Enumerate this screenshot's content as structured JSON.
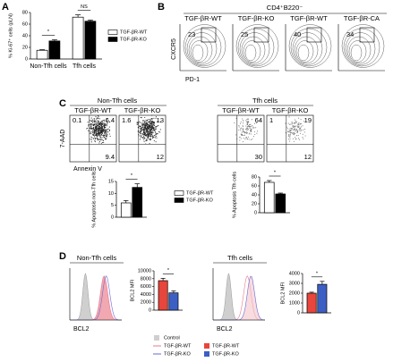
{
  "panel_labels": [
    "A",
    "B",
    "C",
    "D"
  ],
  "flow_b": {
    "header": "CD4⁺B220⁻",
    "y_axis": "CXCR5",
    "x_axis": "PD-1",
    "plots": [
      {
        "title": "TGF-βR-WT",
        "gate": 23
      },
      {
        "title": "TGF-βR-KO",
        "gate": 25
      },
      {
        "title": "TGF-βR-WT",
        "gate": 40
      },
      {
        "title": "TGF-βR-CA",
        "gate": 34
      }
    ]
  },
  "flow_c": {
    "groups": [
      "Non-Tfh cells",
      "Tfh cells"
    ],
    "y_axis": "7-AAD",
    "x_axis": "Annexin V",
    "plots": [
      {
        "title": "TGF-βR-WT",
        "quadrants": {
          "ul": 0.1,
          "ur": 6.4,
          "lr": 9.4
        }
      },
      {
        "title": "TGF-βR-KO",
        "quadrants": {
          "ul": 1.6,
          "ur": 13,
          "lr": 12
        }
      },
      {
        "title": "TGF-βR-WT",
        "quadrants": {
          "ur": 64,
          "lr": 30
        }
      },
      {
        "title": "TGF-βR-KO",
        "quadrants": {
          "ul": 1,
          "ur": 19,
          "lr": 12
        }
      }
    ]
  },
  "hist_d": {
    "groups": [
      "Non-Tfh cells",
      "Tfh cells"
    ],
    "x_axes": [
      "BCL2",
      "BCL2"
    ],
    "legend": [
      {
        "name": "Control",
        "color": "#cfcfcf",
        "style": "fill"
      },
      {
        "name": "TGF-βR-WT",
        "color": "#e8788a",
        "style": "line"
      },
      {
        "name": "TGF-βR-KO",
        "color": "#6a6ad6",
        "style": "line"
      }
    ]
  },
  "chart_data": [
    {
      "type": "bar",
      "y_label": "% Ki-67⁺ cells (pLN)",
      "categories": [
        "Non-Tfh cells",
        "Tfh cells"
      ],
      "series": [
        {
          "name": "TGF-βR-WT",
          "color": "#ffffff",
          "values": [
            15,
            72
          ],
          "errors": [
            1,
            4
          ]
        },
        {
          "name": "TGF-βR-KO",
          "color": "#000000",
          "values": [
            31,
            65
          ],
          "errors": [
            2,
            2
          ]
        }
      ],
      "ylim": [
        0,
        80
      ],
      "yticks": [
        0,
        20,
        40,
        60,
        80
      ],
      "annotations": [
        "*",
        "NS"
      ]
    },
    {
      "type": "bar",
      "y_label": "% Apoptosis non-Tfh cells",
      "categories": [
        null
      ],
      "series": [
        {
          "name": "TGF-βR-WT",
          "color": "#ffffff",
          "values": [
            6
          ],
          "errors": [
            1
          ]
        },
        {
          "name": "TGF-βR-KO",
          "color": "#000000",
          "values": [
            12.5
          ],
          "errors": [
            1.5
          ]
        }
      ],
      "ylim": [
        0,
        15
      ],
      "yticks": [
        0,
        5,
        10,
        15
      ],
      "annotations": [
        "*"
      ]
    },
    {
      "type": "bar",
      "y_label": "% Apoptosis Tfh cells",
      "categories": [
        null
      ],
      "series": [
        {
          "color": "#ffffff",
          "values": [
            68
          ],
          "errors": [
            4
          ]
        },
        {
          "color": "#000000",
          "values": [
            42
          ],
          "errors": [
            2
          ]
        }
      ],
      "ylim": [
        0,
        80
      ],
      "yticks": [
        0,
        20,
        40,
        60,
        80
      ],
      "annotations": [
        "*"
      ]
    },
    {
      "type": "bar",
      "y_label": "BCL2 MFI",
      "categories": [
        null
      ],
      "series": [
        {
          "name": "TGF-βR-WT",
          "color": "#e8453c",
          "values": [
            7500
          ],
          "errors": [
            600
          ]
        },
        {
          "name": "TGF-βR-KO",
          "color": "#3d5fc4",
          "values": [
            4400
          ],
          "errors": [
            500
          ]
        }
      ],
      "ylim": [
        0,
        10000
      ],
      "yticks": [
        0,
        2000,
        4000,
        6000,
        8000,
        10000
      ],
      "annotations": [
        "*"
      ]
    },
    {
      "type": "bar",
      "y_label": "BCL2 MFI",
      "categories": [
        null
      ],
      "series": [
        {
          "color": "#e8453c",
          "values": [
            2000
          ],
          "errors": [
            100
          ]
        },
        {
          "color": "#3d5fc4",
          "values": [
            2900
          ],
          "errors": [
            300
          ]
        }
      ],
      "ylim": [
        0,
        4000
      ],
      "yticks": [
        0,
        1000,
        2000,
        3000,
        4000
      ],
      "annotations": [
        "*"
      ]
    }
  ]
}
